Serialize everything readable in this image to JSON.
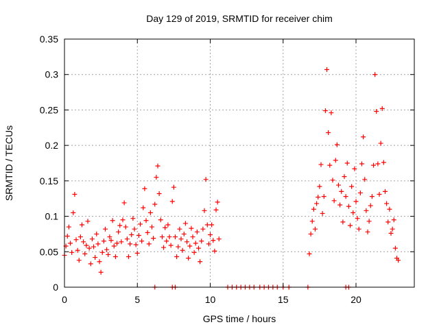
{
  "chart_data": {
    "type": "scatter",
    "title": "Day 129 of 2019, SRMTID for receiver chim",
    "xlabel": "GPS time / hours",
    "ylabel": "SRMTID / TECUs",
    "xlim": [
      0,
      24
    ],
    "ylim": [
      0,
      0.35
    ],
    "xticks": [
      {
        "value": 0,
        "label": "0"
      },
      {
        "value": 5,
        "label": "5"
      },
      {
        "value": 10,
        "label": "10"
      },
      {
        "value": 15,
        "label": "15"
      },
      {
        "value": 20,
        "label": "20"
      }
    ],
    "yticks": [
      {
        "value": 0,
        "label": "0"
      },
      {
        "value": 0.05,
        "label": "0.05"
      },
      {
        "value": 0.1,
        "label": "0.1"
      },
      {
        "value": 0.15,
        "label": "0.15"
      },
      {
        "value": 0.2,
        "label": "0.2"
      },
      {
        "value": 0.25,
        "label": "0.25"
      },
      {
        "value": 0.3,
        "label": "0.3"
      },
      {
        "value": 0.35,
        "label": "0.35"
      }
    ],
    "grid": true,
    "marker": "plus",
    "color": "#ff0000",
    "series": [
      {
        "name": "SRMTID",
        "points": [
          [
            0.0,
            0.045
          ],
          [
            0.1,
            0.058
          ],
          [
            0.2,
            0.072
          ],
          [
            0.3,
            0.085
          ],
          [
            0.4,
            0.062
          ],
          [
            0.5,
            0.049
          ],
          [
            0.6,
            0.105
          ],
          [
            0.7,
            0.131
          ],
          [
            0.8,
            0.067
          ],
          [
            0.9,
            0.052
          ],
          [
            1.0,
            0.038
          ],
          [
            1.1,
            0.071
          ],
          [
            1.2,
            0.088
          ],
          [
            1.3,
            0.064
          ],
          [
            1.4,
            0.047
          ],
          [
            1.5,
            0.059
          ],
          [
            1.6,
            0.093
          ],
          [
            1.7,
            0.055
          ],
          [
            1.8,
            0.033
          ],
          [
            1.9,
            0.068
          ],
          [
            2.0,
            0.057
          ],
          [
            2.1,
            0.042
          ],
          [
            2.2,
            0.075
          ],
          [
            2.3,
            0.061
          ],
          [
            2.4,
            0.036
          ],
          [
            2.5,
            0.021
          ],
          [
            2.6,
            0.049
          ],
          [
            2.7,
            0.065
          ],
          [
            2.8,
            0.082
          ],
          [
            2.9,
            0.053
          ],
          [
            3.0,
            0.046
          ],
          [
            3.1,
            0.071
          ],
          [
            3.2,
            0.066
          ],
          [
            3.3,
            0.094
          ],
          [
            3.4,
            0.058
          ],
          [
            3.5,
            0.043
          ],
          [
            3.6,
            0.062
          ],
          [
            3.7,
            0.078
          ],
          [
            3.8,
            0.087
          ],
          [
            3.9,
            0.064
          ],
          [
            4.0,
            0.095
          ],
          [
            4.1,
            0.119
          ],
          [
            4.2,
            0.085
          ],
          [
            4.3,
            0.068
          ],
          [
            4.4,
            0.043
          ],
          [
            4.5,
            0.061
          ],
          [
            4.6,
            0.074
          ],
          [
            4.7,
            0.097
          ],
          [
            4.8,
            0.082
          ],
          [
            4.9,
            0.06
          ],
          [
            5.0,
            0.048
          ],
          [
            5.1,
            0.073
          ],
          [
            5.2,
            0.089
          ],
          [
            5.3,
            0.065
          ],
          [
            5.4,
            0.112
          ],
          [
            5.5,
            0.139
          ],
          [
            5.6,
            0.094
          ],
          [
            5.7,
            0.077
          ],
          [
            5.8,
            0.061
          ],
          [
            5.9,
            0.105
          ],
          [
            6.0,
            0.085
          ],
          [
            6.1,
            0.069
          ],
          [
            6.2,
            0.117
          ],
          [
            6.3,
            0.155
          ],
          [
            6.4,
            0.171
          ],
          [
            6.5,
            0.132
          ],
          [
            6.6,
            0.095
          ],
          [
            6.7,
            0.071
          ],
          [
            6.8,
            0.056
          ],
          [
            6.9,
            0.084
          ],
          [
            7.0,
            0.065
          ],
          [
            7.1,
            0.088
          ],
          [
            7.2,
            0.071
          ],
          [
            7.3,
            0.059
          ],
          [
            7.4,
            0.121
          ],
          [
            7.5,
            0.141
          ],
          [
            7.6,
            0.071
          ],
          [
            7.7,
            0.043
          ],
          [
            7.8,
            0.057
          ],
          [
            7.9,
            0.082
          ],
          [
            8.0,
            0.068
          ],
          [
            8.1,
            0.052
          ],
          [
            8.2,
            0.075
          ],
          [
            8.3,
            0.09
          ],
          [
            8.4,
            0.064
          ],
          [
            8.5,
            0.041
          ],
          [
            8.6,
            0.058
          ],
          [
            8.7,
            0.083
          ],
          [
            8.8,
            0.071
          ],
          [
            8.9,
            0.049
          ],
          [
            9.0,
            0.062
          ],
          [
            9.1,
            0.078
          ],
          [
            9.2,
            0.055
          ],
          [
            9.3,
            0.036
          ],
          [
            9.4,
            0.065
          ],
          [
            9.5,
            0.082
          ],
          [
            9.6,
            0.108
          ],
          [
            9.7,
            0.152
          ],
          [
            9.8,
            0.088
          ],
          [
            9.9,
            0.061
          ],
          [
            10.0,
            0.074
          ],
          [
            10.1,
            0.088
          ],
          [
            10.2,
            0.066
          ],
          [
            10.3,
            0.051
          ],
          [
            10.4,
            0.109
          ],
          [
            10.5,
            0.12
          ],
          [
            10.6,
            0.068
          ],
          [
            16.8,
            0.047
          ],
          [
            16.9,
            0.075
          ],
          [
            17.0,
            0.093
          ],
          [
            17.1,
            0.11
          ],
          [
            17.2,
            0.082
          ],
          [
            17.3,
            0.118
          ],
          [
            17.4,
            0.127
          ],
          [
            17.5,
            0.142
          ],
          [
            17.6,
            0.173
          ],
          [
            17.7,
            0.104
          ],
          [
            17.8,
            0.128
          ],
          [
            17.9,
            0.249
          ],
          [
            18.0,
            0.307
          ],
          [
            18.1,
            0.218
          ],
          [
            18.2,
            0.172
          ],
          [
            18.3,
            0.246
          ],
          [
            18.4,
            0.151
          ],
          [
            18.5,
            0.122
          ],
          [
            18.6,
            0.179
          ],
          [
            18.7,
            0.201
          ],
          [
            18.8,
            0.144
          ],
          [
            18.9,
            0.116
          ],
          [
            19.0,
            0.135
          ],
          [
            19.1,
            0.092
          ],
          [
            19.2,
            0.156
          ],
          [
            19.3,
            0.128
          ],
          [
            19.4,
            0.175
          ],
          [
            19.5,
            0.114
          ],
          [
            19.6,
            0.087
          ],
          [
            19.7,
            0.142
          ],
          [
            19.8,
            0.105
          ],
          [
            19.9,
            0.167
          ],
          [
            20.0,
            0.121
          ],
          [
            20.1,
            0.097
          ],
          [
            20.2,
            0.082
          ],
          [
            20.3,
            0.133
          ],
          [
            20.4,
            0.174
          ],
          [
            20.5,
            0.212
          ],
          [
            20.6,
            0.152
          ],
          [
            20.7,
            0.108
          ],
          [
            20.8,
            0.078
          ],
          [
            20.9,
            0.093
          ],
          [
            21.0,
            0.115
          ],
          [
            21.1,
            0.128
          ],
          [
            21.2,
            0.172
          ],
          [
            21.3,
            0.3
          ],
          [
            21.4,
            0.248
          ],
          [
            21.5,
            0.174
          ],
          [
            21.6,
            0.131
          ],
          [
            21.7,
            0.203
          ],
          [
            21.8,
            0.252
          ],
          [
            21.9,
            0.176
          ],
          [
            22.0,
            0.135
          ],
          [
            22.1,
            0.118
          ],
          [
            22.2,
            0.092
          ],
          [
            22.3,
            0.11
          ],
          [
            22.4,
            0.076
          ],
          [
            22.5,
            0.082
          ],
          [
            22.6,
            0.095
          ],
          [
            22.7,
            0.055
          ],
          [
            22.8,
            0.041
          ],
          [
            22.9,
            0.038
          ],
          [
            6.2,
            0
          ],
          [
            7.4,
            0
          ],
          [
            7.6,
            0
          ],
          [
            11.2,
            0
          ],
          [
            11.5,
            0
          ],
          [
            11.8,
            0
          ],
          [
            12.1,
            0
          ],
          [
            12.4,
            0
          ],
          [
            12.7,
            0
          ],
          [
            13.0,
            0
          ],
          [
            13.4,
            0
          ],
          [
            13.7,
            0
          ],
          [
            14.0,
            0
          ],
          [
            14.3,
            0
          ],
          [
            14.6,
            0
          ],
          [
            15.0,
            0
          ],
          [
            15.4,
            0
          ],
          [
            16.7,
            0
          ],
          [
            19.3,
            0
          ],
          [
            19.5,
            0
          ]
        ]
      }
    ]
  }
}
